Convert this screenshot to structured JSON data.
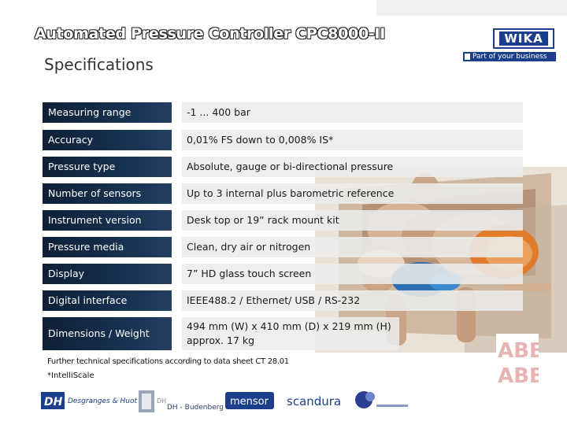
{
  "title": "Automated Pressure Controller CPC8000-II",
  "subtitle": "Specifications",
  "logo": {
    "brand": "WIKA",
    "tagline": "Part of your business",
    "colors": {
      "brand_blue": "#1b3f8b"
    }
  },
  "specs": [
    {
      "label": "Measuring range",
      "value": "-1 ... 400 bar"
    },
    {
      "label": "Accuracy",
      "value": "0,01% FS down to 0,008% IS*"
    },
    {
      "label": "Pressure type",
      "value": "Absolute, gauge or bi-directional pressure"
    },
    {
      "label": "Number of sensors",
      "value": "Up to 3 internal plus barometric reference"
    },
    {
      "label": "Instrument version",
      "value": "Desk top or 19” rack mount kit"
    },
    {
      "label": "Pressure media",
      "value": "Clean, dry air or nitrogen"
    },
    {
      "label": "Display",
      "value": "7” HD glass touch screen"
    },
    {
      "label": "Digital interface",
      "value": "IEEE488.2 / Ethernet/ USB / RS-232"
    },
    {
      "label": "Dimensions / Weight",
      "value": "494 mm (W) x 410 mm (D) x 219 mm (H) approx. 17 kg"
    }
  ],
  "footnotes": {
    "line1": "Further technical specifications according to data sheet  CT 28.01",
    "line2": "*IntelliScale"
  },
  "partners": [
    {
      "name": "DH",
      "text": "Desgranges & Huot"
    },
    {
      "name": "DH",
      "text": "DH - Budenberg"
    },
    {
      "name": "mensor",
      "text": "mensor"
    },
    {
      "name": "scandura",
      "text": "scandura"
    },
    {
      "name": "other"
    }
  ],
  "side_logo": {
    "text1": "ABB",
    "text2": "ABB"
  }
}
